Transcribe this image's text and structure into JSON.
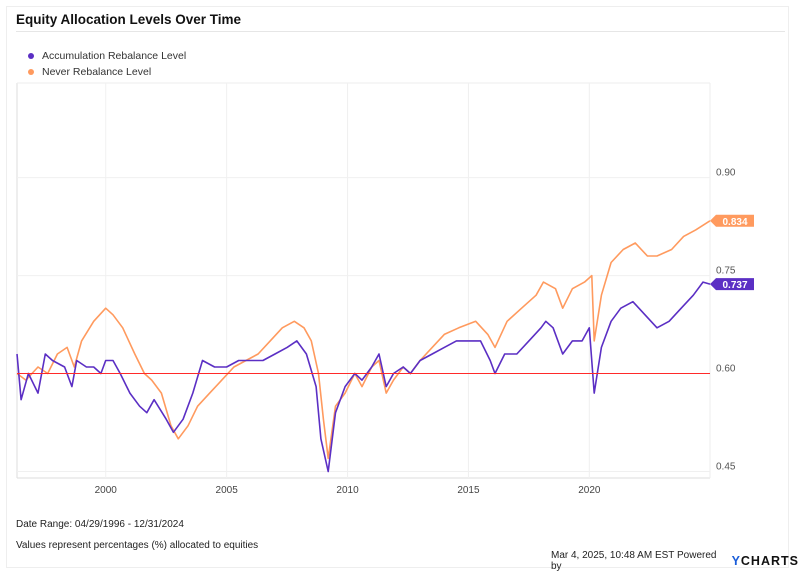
{
  "title": "Equity Allocation Levels Over Time",
  "footer": {
    "date_range": "Date Range: 04/29/1996 - 12/31/2024",
    "note": "Values represent percentages (%) allocated to equities",
    "timestamp": "Mar 4, 2025, 10:48 AM EST Powered by",
    "brand_y": "Y",
    "brand_rest": "CHARTS"
  },
  "chart_data": {
    "type": "line",
    "title": "Equity Allocation Levels Over Time",
    "xlim": [
      1996.33,
      2024.99
    ],
    "ylim": [
      0.44,
      1.045
    ],
    "x_ticks": [
      2000,
      2005,
      2010,
      2015,
      2020
    ],
    "x_tick_labels": [
      "2000",
      "2005",
      "2010",
      "2015",
      "2020"
    ],
    "y_ticks": [
      0.45,
      0.6,
      0.75,
      0.9
    ],
    "y_tick_labels": [
      "0.45",
      "0.60",
      "0.75",
      "0.90"
    ],
    "grid": true,
    "legend": "top-left",
    "reference_line": {
      "value": 0.6,
      "color": "#ff2a2a"
    },
    "series": [
      {
        "name": "Accumulation Rebalance Level",
        "color": "#5b2fc4",
        "last_value_label": "0.737",
        "x": [
          1996.33,
          1996.5,
          1996.8,
          1997.2,
          1997.5,
          1997.8,
          1998.3,
          1998.6,
          1998.8,
          1999.2,
          1999.5,
          1999.8,
          2000.0,
          2000.3,
          2000.6,
          2001.0,
          2001.4,
          2001.7,
          2002.0,
          2002.5,
          2002.8,
          2003.2,
          2003.6,
          2004.0,
          2004.5,
          2005.0,
          2005.5,
          2006.0,
          2006.5,
          2007.0,
          2007.5,
          2007.9,
          2008.3,
          2008.7,
          2008.9,
          2009.2,
          2009.5,
          2009.9,
          2010.3,
          2010.6,
          2011.0,
          2011.3,
          2011.6,
          2011.9,
          2012.3,
          2012.6,
          2013.0,
          2013.5,
          2014.0,
          2014.5,
          2015.0,
          2015.5,
          2015.9,
          2016.1,
          2016.5,
          2017.0,
          2017.5,
          2018.0,
          2018.2,
          2018.5,
          2018.9,
          2019.3,
          2019.7,
          2020.0,
          2020.2,
          2020.5,
          2020.9,
          2021.3,
          2021.8,
          2022.3,
          2022.8,
          2023.3,
          2023.8,
          2024.3,
          2024.7,
          2024.99
        ],
        "y": [
          0.63,
          0.56,
          0.6,
          0.57,
          0.63,
          0.62,
          0.61,
          0.58,
          0.62,
          0.61,
          0.61,
          0.6,
          0.62,
          0.62,
          0.6,
          0.57,
          0.55,
          0.54,
          0.56,
          0.53,
          0.51,
          0.53,
          0.57,
          0.62,
          0.61,
          0.61,
          0.62,
          0.62,
          0.62,
          0.63,
          0.64,
          0.65,
          0.63,
          0.58,
          0.5,
          0.45,
          0.54,
          0.58,
          0.6,
          0.59,
          0.61,
          0.63,
          0.58,
          0.6,
          0.61,
          0.6,
          0.62,
          0.63,
          0.64,
          0.65,
          0.65,
          0.65,
          0.62,
          0.6,
          0.63,
          0.63,
          0.65,
          0.67,
          0.68,
          0.67,
          0.63,
          0.65,
          0.65,
          0.67,
          0.57,
          0.64,
          0.68,
          0.7,
          0.71,
          0.69,
          0.67,
          0.68,
          0.7,
          0.72,
          0.74,
          0.737
        ]
      },
      {
        "name": "Never Rebalance Level",
        "color": "#ff9a5e",
        "last_value_label": "0.834",
        "x": [
          1996.33,
          1996.7,
          1997.2,
          1997.6,
          1998.0,
          1998.4,
          1998.7,
          1999.0,
          1999.5,
          2000.0,
          2000.3,
          2000.7,
          2001.2,
          2001.6,
          2001.9,
          2002.3,
          2002.7,
          2003.0,
          2003.4,
          2003.8,
          2004.3,
          2004.8,
          2005.3,
          2005.8,
          2006.3,
          2006.8,
          2007.3,
          2007.8,
          2008.2,
          2008.5,
          2008.8,
          2009.0,
          2009.2,
          2009.5,
          2009.9,
          2010.3,
          2010.6,
          2011.0,
          2011.3,
          2011.6,
          2011.9,
          2012.3,
          2012.6,
          2013.0,
          2013.5,
          2014.0,
          2014.6,
          2015.3,
          2015.8,
          2016.1,
          2016.6,
          2017.2,
          2017.8,
          2018.1,
          2018.6,
          2018.9,
          2019.3,
          2019.8,
          2020.1,
          2020.2,
          2020.5,
          2020.9,
          2021.4,
          2021.9,
          2022.4,
          2022.8,
          2023.4,
          2023.9,
          2024.4,
          2024.99
        ],
        "y": [
          0.6,
          0.59,
          0.61,
          0.6,
          0.63,
          0.64,
          0.61,
          0.65,
          0.68,
          0.7,
          0.69,
          0.67,
          0.63,
          0.6,
          0.59,
          0.57,
          0.52,
          0.5,
          0.52,
          0.55,
          0.57,
          0.59,
          0.61,
          0.62,
          0.63,
          0.65,
          0.67,
          0.68,
          0.67,
          0.65,
          0.6,
          0.53,
          0.47,
          0.55,
          0.57,
          0.6,
          0.58,
          0.61,
          0.62,
          0.57,
          0.59,
          0.61,
          0.6,
          0.62,
          0.64,
          0.66,
          0.67,
          0.68,
          0.66,
          0.64,
          0.68,
          0.7,
          0.72,
          0.74,
          0.73,
          0.7,
          0.73,
          0.74,
          0.75,
          0.65,
          0.72,
          0.77,
          0.79,
          0.8,
          0.78,
          0.78,
          0.79,
          0.81,
          0.82,
          0.834
        ]
      }
    ]
  }
}
